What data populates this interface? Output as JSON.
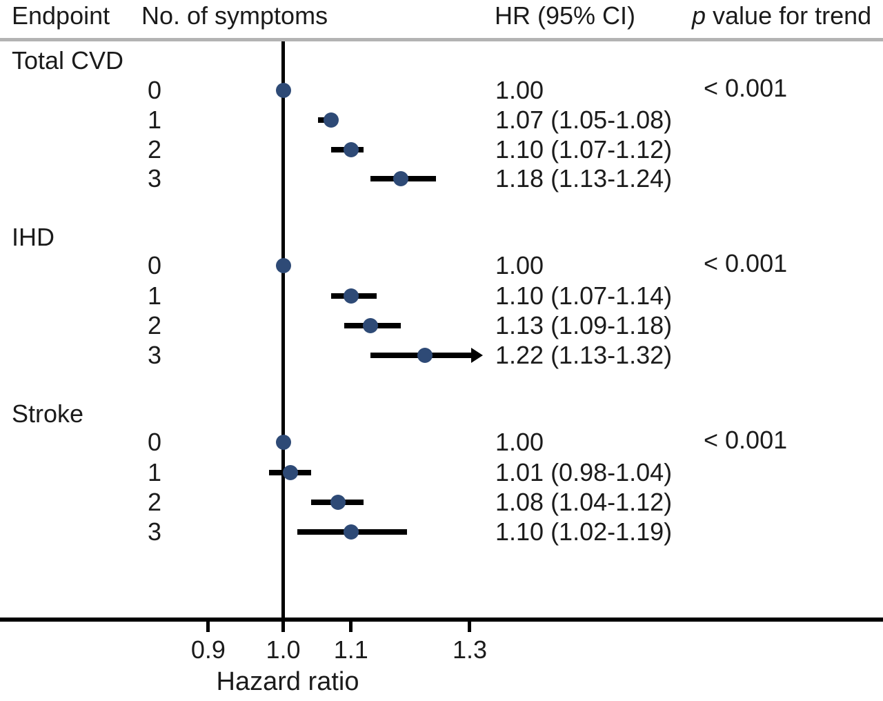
{
  "header": {
    "endpoint": "Endpoint",
    "symptoms": "No. of symptoms",
    "hr": "HR (95% CI)",
    "p_italic": "p",
    "p_rest": " value for trend"
  },
  "colors": {
    "marker": "#2e4a76",
    "line": "#000000",
    "separator": "#b3b3b3",
    "text": "#1b1b1b"
  },
  "chart_data": {
    "type": "forest",
    "xscale": "log",
    "xlabel": "Hazard ratio",
    "refline": 1.0,
    "xticks": [
      {
        "value": 0.9,
        "label": "0.9"
      },
      {
        "value": 1.0,
        "label": "1.0"
      },
      {
        "value": 1.1,
        "label": "1.1"
      },
      {
        "value": 1.3,
        "label": "1.3"
      }
    ],
    "groups": [
      {
        "endpoint": "Total CVD",
        "p_trend": "< 0.001",
        "rows": [
          {
            "symptoms": "0",
            "hr": 1.0,
            "lo": null,
            "hi": null,
            "label": "1.00"
          },
          {
            "symptoms": "1",
            "hr": 1.07,
            "lo": 1.05,
            "hi": 1.08,
            "label": "1.07 (1.05-1.08)"
          },
          {
            "symptoms": "2",
            "hr": 1.1,
            "lo": 1.07,
            "hi": 1.12,
            "label": "1.10 (1.07-1.12)"
          },
          {
            "symptoms": "3",
            "hr": 1.18,
            "lo": 1.13,
            "hi": 1.24,
            "label": "1.18 (1.13-1.24)"
          }
        ]
      },
      {
        "endpoint": "IHD",
        "p_trend": "< 0.001",
        "rows": [
          {
            "symptoms": "0",
            "hr": 1.0,
            "lo": null,
            "hi": null,
            "label": "1.00"
          },
          {
            "symptoms": "1",
            "hr": 1.1,
            "lo": 1.07,
            "hi": 1.14,
            "label": "1.10 (1.07-1.14)"
          },
          {
            "symptoms": "2",
            "hr": 1.13,
            "lo": 1.09,
            "hi": 1.18,
            "label": "1.13 (1.09-1.18)"
          },
          {
            "symptoms": "3",
            "hr": 1.22,
            "lo": 1.13,
            "hi": 1.32,
            "label": "1.22 (1.13-1.32)",
            "arrow": true
          }
        ]
      },
      {
        "endpoint": "Stroke",
        "p_trend": "< 0.001",
        "rows": [
          {
            "symptoms": "0",
            "hr": 1.0,
            "lo": null,
            "hi": null,
            "label": "1.00"
          },
          {
            "symptoms": "1",
            "hr": 1.01,
            "lo": 0.98,
            "hi": 1.04,
            "label": "1.01 (0.98-1.04)"
          },
          {
            "symptoms": "2",
            "hr": 1.08,
            "lo": 1.04,
            "hi": 1.12,
            "label": "1.08 (1.04-1.12)"
          },
          {
            "symptoms": "3",
            "hr": 1.1,
            "lo": 1.02,
            "hi": 1.19,
            "label": "1.10 (1.02-1.19)"
          }
        ]
      }
    ]
  }
}
